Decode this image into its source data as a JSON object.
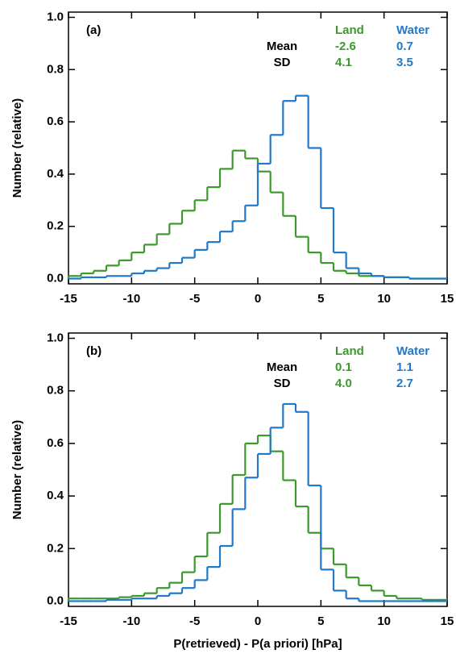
{
  "chart_data": [
    {
      "type": "step-histogram",
      "panel_label": "(a)",
      "ylabel": "Number (relative)",
      "stat_labels": [
        "Mean",
        "SD"
      ],
      "bins": [
        -15,
        -14,
        -13,
        -12,
        -11,
        -10,
        -9,
        -8,
        -7,
        -6,
        -5,
        -4,
        -3,
        -2,
        -1,
        0,
        1,
        2,
        3,
        4,
        5,
        6,
        7,
        8,
        9,
        10,
        11,
        12,
        13,
        14,
        15
      ],
      "series": [
        {
          "name": "Land",
          "color": "#3a9a2a",
          "mean": -2.6,
          "sd": 4.1,
          "values": [
            0.01,
            0.02,
            0.03,
            0.05,
            0.07,
            0.1,
            0.13,
            0.17,
            0.21,
            0.26,
            0.3,
            0.35,
            0.42,
            0.49,
            0.46,
            0.41,
            0.33,
            0.24,
            0.16,
            0.1,
            0.06,
            0.03,
            0.02,
            0.01,
            0.01,
            0.005,
            0.005,
            0,
            0,
            0
          ]
        },
        {
          "name": "Water",
          "color": "#1f78c8",
          "mean": 0.7,
          "sd": 3.5,
          "values": [
            0,
            0.005,
            0.005,
            0.01,
            0.01,
            0.02,
            0.03,
            0.04,
            0.06,
            0.08,
            0.11,
            0.14,
            0.18,
            0.22,
            0.28,
            0.44,
            0.55,
            0.68,
            0.7,
            0.5,
            0.27,
            0.1,
            0.04,
            0.02,
            0.01,
            0.005,
            0.005,
            0,
            0,
            0
          ]
        }
      ],
      "xlim": [
        -15,
        15
      ],
      "xticks": [
        -15,
        -10,
        -5,
        0,
        5,
        10,
        15
      ],
      "ylim": [
        -0.02,
        1.02
      ],
      "yticks": [
        {
          "value": 0,
          "label": "0.0"
        },
        0.2,
        0.4,
        0.6,
        0.8,
        {
          "value": 1,
          "label": "1.0"
        }
      ]
    },
    {
      "type": "step-histogram",
      "panel_label": "(b)",
      "ylabel": "Number (relative)",
      "xlabel": "P(retrieved) - P(a priori) [hPa]",
      "stat_labels": [
        "Mean",
        "SD"
      ],
      "bins": [
        -15,
        -14,
        -13,
        -12,
        -11,
        -10,
        -9,
        -8,
        -7,
        -6,
        -5,
        -4,
        -3,
        -2,
        -1,
        0,
        1,
        2,
        3,
        4,
        5,
        6,
        7,
        8,
        9,
        10,
        11,
        12,
        13,
        14,
        15
      ],
      "series": [
        {
          "name": "Land",
          "color": "#3a9a2a",
          "mean": 0.1,
          "sd": {
            "value": 4,
            "label": "4.0"
          },
          "values": [
            0.01,
            0.01,
            0.01,
            0.01,
            0.015,
            0.02,
            0.03,
            0.05,
            0.07,
            0.11,
            0.17,
            0.26,
            0.37,
            0.48,
            0.6,
            0.63,
            0.57,
            0.46,
            0.36,
            0.26,
            0.2,
            0.14,
            0.09,
            0.06,
            0.04,
            0.02,
            0.01,
            0.01,
            0.005,
            0.005
          ]
        },
        {
          "name": "Water",
          "color": "#1f78c8",
          "mean": 1.1,
          "sd": 2.7,
          "values": [
            0,
            0,
            0,
            0.005,
            0.005,
            0.01,
            0.01,
            0.02,
            0.03,
            0.05,
            0.08,
            0.13,
            0.21,
            0.35,
            0.47,
            0.56,
            0.66,
            0.75,
            0.72,
            0.44,
            0.12,
            0.04,
            0.01,
            0,
            0,
            0,
            0,
            0,
            0,
            0
          ]
        }
      ],
      "xlim": [
        -15,
        15
      ],
      "xticks": [
        -15,
        -10,
        -5,
        0,
        5,
        10,
        15
      ],
      "ylim": [
        -0.02,
        1.02
      ],
      "yticks": [
        {
          "value": 0,
          "label": "0.0"
        },
        0.2,
        0.4,
        0.6,
        0.8,
        {
          "value": 1,
          "label": "1.0"
        }
      ]
    }
  ]
}
